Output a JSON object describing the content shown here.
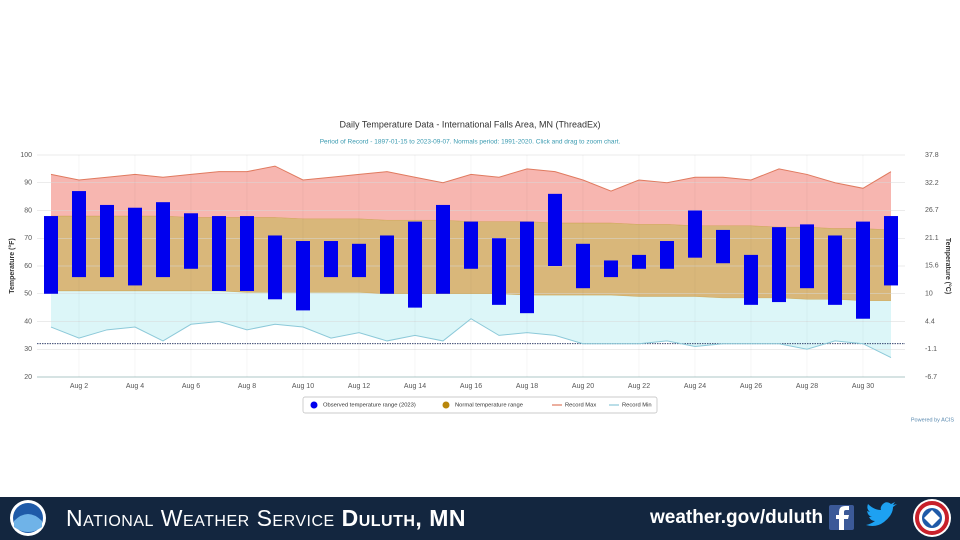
{
  "chart_data": {
    "type": "combo",
    "title": "Daily Temperature Data - International Falls Area, MN (ThreadEx)",
    "subtitle": "Period of Record - 1897-01-15 to 2023-09-07. Normals period: 1991-2020. Click and drag to zoom chart.",
    "y_label": "Temperature (°F)",
    "y2_label": "Temperature (°C)",
    "credit": "Powered by ACIS",
    "categories": [
      null,
      "Aug 2",
      null,
      "Aug 4",
      null,
      "Aug 6",
      null,
      "Aug 8",
      null,
      "Aug 10",
      null,
      "Aug 12",
      null,
      "Aug 14",
      null,
      "Aug 16",
      null,
      "Aug 18",
      null,
      "Aug 20",
      null,
      "Aug 22",
      null,
      "Aug 24",
      null,
      "Aug 26",
      null,
      "Aug 28",
      null,
      "Aug 30",
      null
    ],
    "ylim": [
      20,
      100
    ],
    "yticks": [
      20,
      30,
      40,
      50,
      60,
      70,
      80,
      90,
      100
    ],
    "y2lim": [
      -6.7,
      37.8
    ],
    "y2ticks": [
      -6.7,
      -1.1,
      4.4,
      10,
      15.6,
      21.1,
      26.7,
      32.2,
      37.8
    ],
    "grid": true,
    "threshold": 32,
    "threshold_color": "#1a2a5a",
    "series": [
      {
        "name": "Observed temperature range (2023)",
        "type": "range-bar",
        "color": "#0000ee",
        "low": [
          50,
          56,
          56,
          53,
          56,
          59,
          51,
          51,
          48,
          44,
          56,
          56,
          50,
          45,
          50,
          59,
          46,
          43,
          60,
          52,
          56,
          59,
          59,
          63,
          61,
          46,
          47,
          52,
          46,
          41,
          53
        ],
        "high": [
          78,
          87,
          82,
          81,
          83,
          79,
          78,
          78,
          71,
          69,
          69,
          68,
          71,
          76,
          82,
          76,
          70,
          76,
          86,
          68,
          62,
          64,
          69,
          80,
          73,
          64,
          74,
          75,
          71,
          76,
          78
        ]
      },
      {
        "name": "Normal temperature range",
        "type": "range-area",
        "color": "#b8860b",
        "fill": "#d9b77a",
        "low": [
          51,
          51,
          51,
          51,
          51,
          51,
          51,
          50.5,
          50.5,
          50.5,
          50.5,
          50.5,
          50,
          50,
          50,
          50,
          50,
          49.5,
          49.5,
          49.5,
          49.5,
          49,
          49,
          49,
          48.5,
          48.5,
          48.5,
          48,
          48,
          47.5,
          47.5
        ],
        "high": [
          78,
          78,
          78,
          78,
          78,
          77.5,
          77.5,
          77.5,
          77.5,
          77,
          77,
          77,
          76.5,
          76.5,
          76.5,
          76,
          76,
          76,
          75.5,
          75.5,
          75.5,
          75,
          75,
          74.5,
          74.5,
          74.5,
          74,
          74,
          73.5,
          73.5,
          73
        ]
      },
      {
        "name": "Record Max",
        "type": "line",
        "color": "#e07a5f",
        "fill": "#f7b6b0",
        "values": [
          93,
          91,
          92,
          93,
          92,
          93,
          94,
          94,
          96,
          91,
          92,
          93,
          94,
          92,
          90,
          93,
          92,
          95,
          94,
          91,
          87,
          91,
          90,
          92,
          92,
          91,
          95,
          93,
          90,
          88,
          94
        ]
      },
      {
        "name": "Record Min",
        "type": "line",
        "color": "#8cc9d9",
        "fill": "#dcf6f8",
        "values": [
          38,
          34,
          37,
          38,
          33,
          39,
          40,
          37,
          39,
          38,
          34,
          36,
          33,
          35,
          33,
          41,
          35,
          36,
          35,
          32,
          32,
          32,
          33,
          31,
          32,
          32,
          32,
          30,
          33,
          32,
          27
        ]
      }
    ]
  },
  "footer": {
    "agency": "National Weather Service",
    "office": "Duluth, MN",
    "url": "weather.gov/duluth"
  }
}
